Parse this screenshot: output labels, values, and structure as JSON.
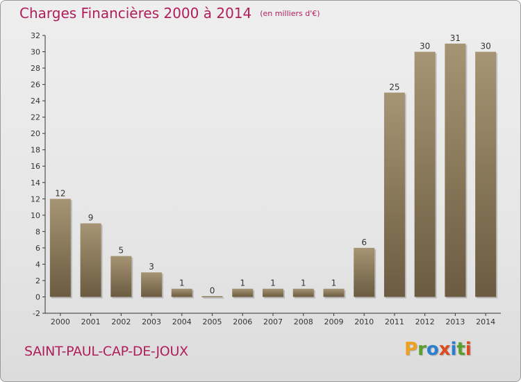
{
  "title": "Charges Financières 2000 à 2014",
  "unit": "(en milliers d'€)",
  "commune": "SAINT-PAUL-CAP-DE-JOUX",
  "logo": {
    "letters": [
      "P",
      "r",
      "o",
      "x",
      "i",
      "t",
      "i"
    ],
    "colors": [
      "#f0a020",
      "#5aa02c",
      "#2a7fd0",
      "#e04a20",
      "#2a7fd0",
      "#5aa02c",
      "#e04a20"
    ]
  },
  "colors": {
    "bar_top": "#a69574",
    "bar_bottom": "#6b5b40",
    "title": "#b01e5a",
    "axis": "#333333"
  },
  "chart_data": {
    "type": "bar",
    "title": "Charges Financières 2000 à 2014",
    "subtitle": "(en milliers d'€)",
    "xlabel": "",
    "ylabel": "",
    "categories": [
      "2000",
      "2001",
      "2002",
      "2003",
      "2004",
      "2005",
      "2006",
      "2007",
      "2008",
      "2009",
      "2010",
      "2011",
      "2012",
      "2013",
      "2014"
    ],
    "values": [
      12,
      9,
      5,
      3,
      1,
      0,
      1,
      1,
      1,
      1,
      6,
      25,
      30,
      31,
      30
    ],
    "ylim": [
      -2,
      32
    ],
    "yticks": [
      -2,
      0,
      2,
      4,
      6,
      8,
      10,
      12,
      14,
      16,
      18,
      20,
      22,
      24,
      26,
      28,
      30,
      32
    ],
    "grid": false,
    "legend": "none"
  }
}
